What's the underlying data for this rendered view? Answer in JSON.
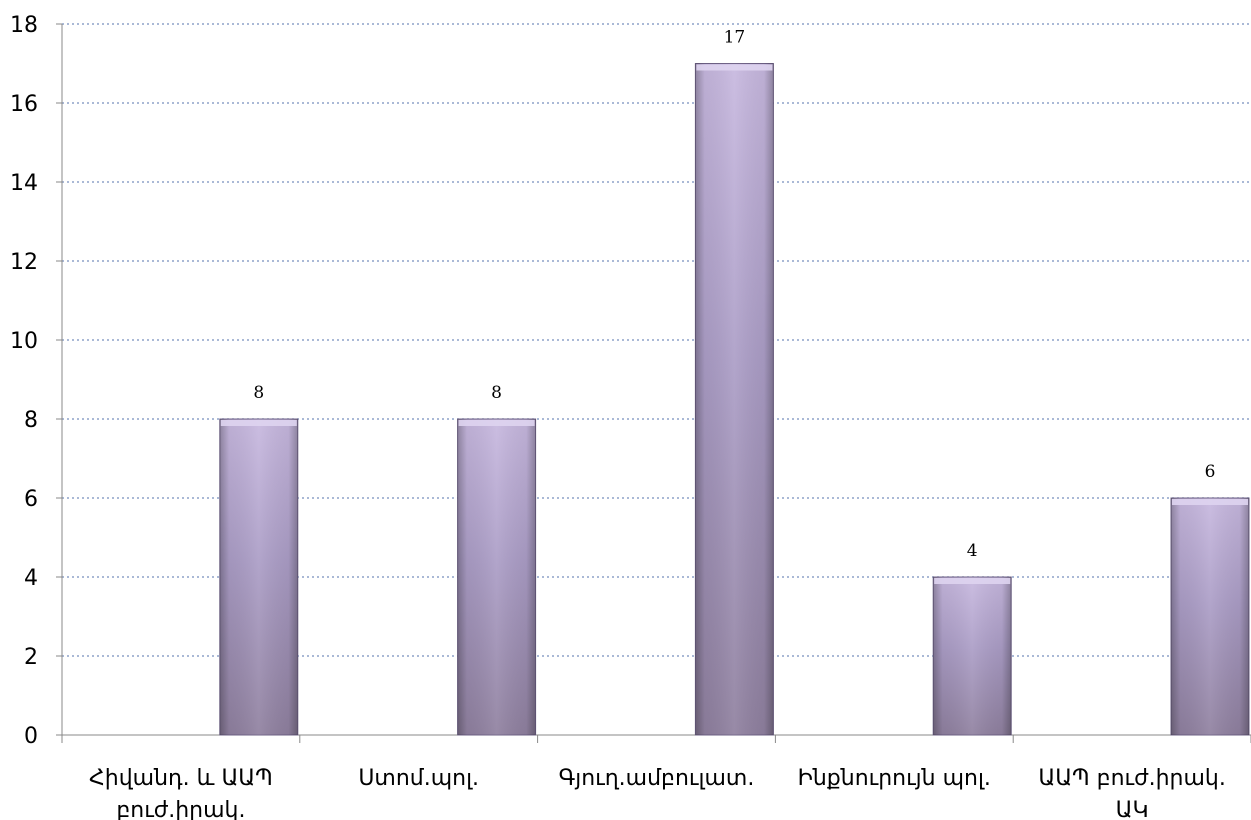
{
  "chart_data": {
    "type": "bar",
    "categories": [
      [
        "Հիվանդ. և ԱԱՊ",
        "բուժ.իրակ."
      ],
      [
        "Ստոմ.պոլ."
      ],
      [
        "Գյուղ.ամբուլատ."
      ],
      [
        "Ինքնուրույն պոլ."
      ],
      [
        "ԱԱՊ բուժ.իրակ.",
        "ԱԿ"
      ]
    ],
    "values": [
      8,
      8,
      17,
      4,
      6
    ],
    "ylim": [
      0,
      18
    ],
    "yticks": [
      0,
      2,
      4,
      6,
      8,
      10,
      12,
      14,
      16,
      18
    ],
    "grid": true,
    "legend": false,
    "colors": {
      "bar_top": "#c7b8df",
      "bar_mid": "#ab9dc6",
      "bar_bottom": "#8f809f",
      "bar_edge": "#6d6085",
      "bar_cap": "#ded4ef",
      "grid": "#8ea2c8",
      "axis": "#888888"
    }
  }
}
